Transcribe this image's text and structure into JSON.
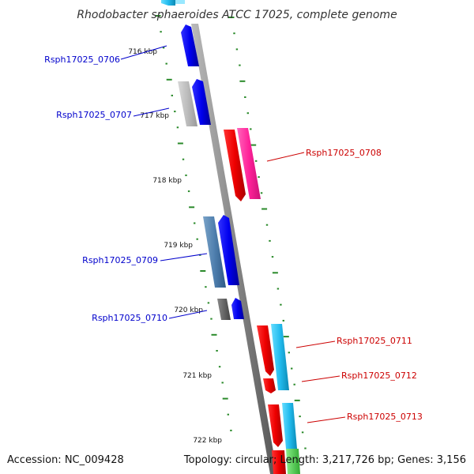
{
  "title": "Rhodobacter sphaeroides ATCC 17025, complete genome",
  "footer": {
    "accession": "Accession: NC_009428",
    "summary": "Topology: circular; Length: 3,217,726 bp; Genes: 3,156"
  },
  "colors": {
    "strand_minus_label": "#0000cc",
    "strand_plus_label": "#cc0000",
    "tick_mark": "#2a8a2a",
    "backbone": "#888888"
  },
  "ticks": [
    "716 kbp",
    "717 kbp",
    "718 kbp",
    "719 kbp",
    "720 kbp",
    "721 kbp",
    "722 kbp"
  ],
  "genes": [
    {
      "label": "Rsph17025_0706",
      "strand": "minus"
    },
    {
      "label": "Rsph17025_0707",
      "strand": "minus"
    },
    {
      "label": "Rsph17025_0708",
      "strand": "plus"
    },
    {
      "label": "Rsph17025_0709",
      "strand": "minus"
    },
    {
      "label": "Rsph17025_0710",
      "strand": "minus"
    },
    {
      "label": "Rsph17025_0711",
      "strand": "plus"
    },
    {
      "label": "Rsph17025_0712",
      "strand": "plus"
    },
    {
      "label": "Rsph17025_0713",
      "strand": "plus"
    }
  ]
}
